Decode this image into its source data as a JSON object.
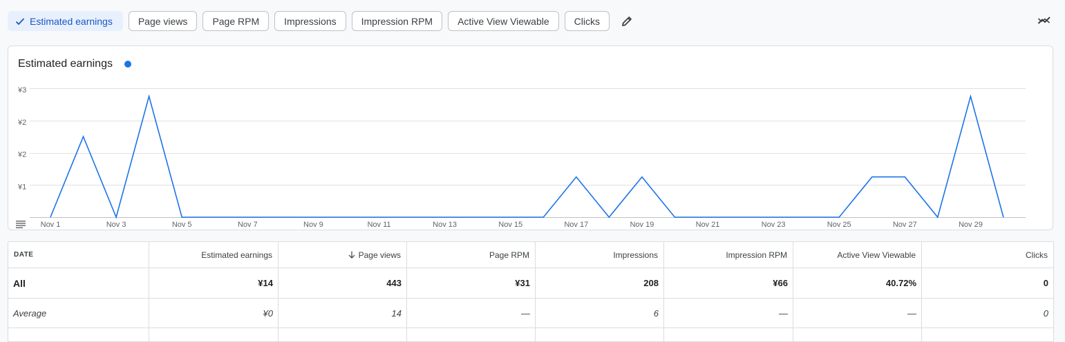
{
  "toolbar": {
    "chips": [
      {
        "label": "Estimated earnings",
        "selected": true
      },
      {
        "label": "Page views",
        "selected": false
      },
      {
        "label": "Page RPM",
        "selected": false
      },
      {
        "label": "Impressions",
        "selected": false
      },
      {
        "label": "Impression RPM",
        "selected": false
      },
      {
        "label": "Active View Viewable",
        "selected": false
      },
      {
        "label": "Clicks",
        "selected": false
      }
    ],
    "edit_icon": "pencil-icon",
    "trend_icon": "trend-icon"
  },
  "colors": {
    "accent": "#1a73e8",
    "selected_chip_bg": "#e8f0fe",
    "selected_chip_text": "#1a57c0",
    "grid": "#e0e0e0"
  },
  "chart_data": {
    "type": "line",
    "title": "Estimated earnings",
    "x": [
      "Nov 1",
      "Nov 2",
      "Nov 3",
      "Nov 4",
      "Nov 5",
      "Nov 6",
      "Nov 7",
      "Nov 8",
      "Nov 9",
      "Nov 10",
      "Nov 11",
      "Nov 12",
      "Nov 13",
      "Nov 14",
      "Nov 15",
      "Nov 16",
      "Nov 17",
      "Nov 18",
      "Nov 19",
      "Nov 20",
      "Nov 21",
      "Nov 22",
      "Nov 23",
      "Nov 24",
      "Nov 25",
      "Nov 26",
      "Nov 27",
      "Nov 28",
      "Nov 29",
      "Nov 30"
    ],
    "x_tick_labels": [
      "Nov 1",
      "Nov 3",
      "Nov 5",
      "Nov 7",
      "Nov 9",
      "Nov 11",
      "Nov 13",
      "Nov 15",
      "Nov 17",
      "Nov 19",
      "Nov 21",
      "Nov 23",
      "Nov 25",
      "Nov 27",
      "Nov 29"
    ],
    "y_tick_labels": [
      "¥1",
      "¥2",
      "¥2",
      "¥3"
    ],
    "y_tick_values": [
      0.75,
      1.5,
      2.25,
      3.0
    ],
    "ylim": [
      0,
      3.0
    ],
    "series": [
      {
        "values": [
          0,
          1.875,
          0,
          2.8125,
          0,
          0,
          0,
          0,
          0,
          0,
          0,
          0,
          0,
          0,
          0,
          0,
          0.9375,
          0,
          0.9375,
          0,
          0,
          0,
          0,
          0,
          0,
          0.9375,
          0.9375,
          0,
          2.8125,
          0
        ]
      }
    ],
    "grid": true,
    "legend": "next to title"
  },
  "table": {
    "columns": [
      "DATE",
      "Estimated earnings",
      "Page views",
      "Page RPM",
      "Impressions",
      "Impression RPM",
      "Active View Viewable",
      "Clicks"
    ],
    "sorted_column_icon": "arrow-down-icon",
    "rows": [
      {
        "cells": [
          "All",
          "¥14",
          "443",
          "¥31",
          "208",
          "¥66",
          "40.72%",
          "0"
        ]
      },
      {
        "cells": [
          "Average",
          "¥0",
          "14",
          "—",
          "6",
          "—",
          "—",
          "0"
        ]
      }
    ]
  }
}
